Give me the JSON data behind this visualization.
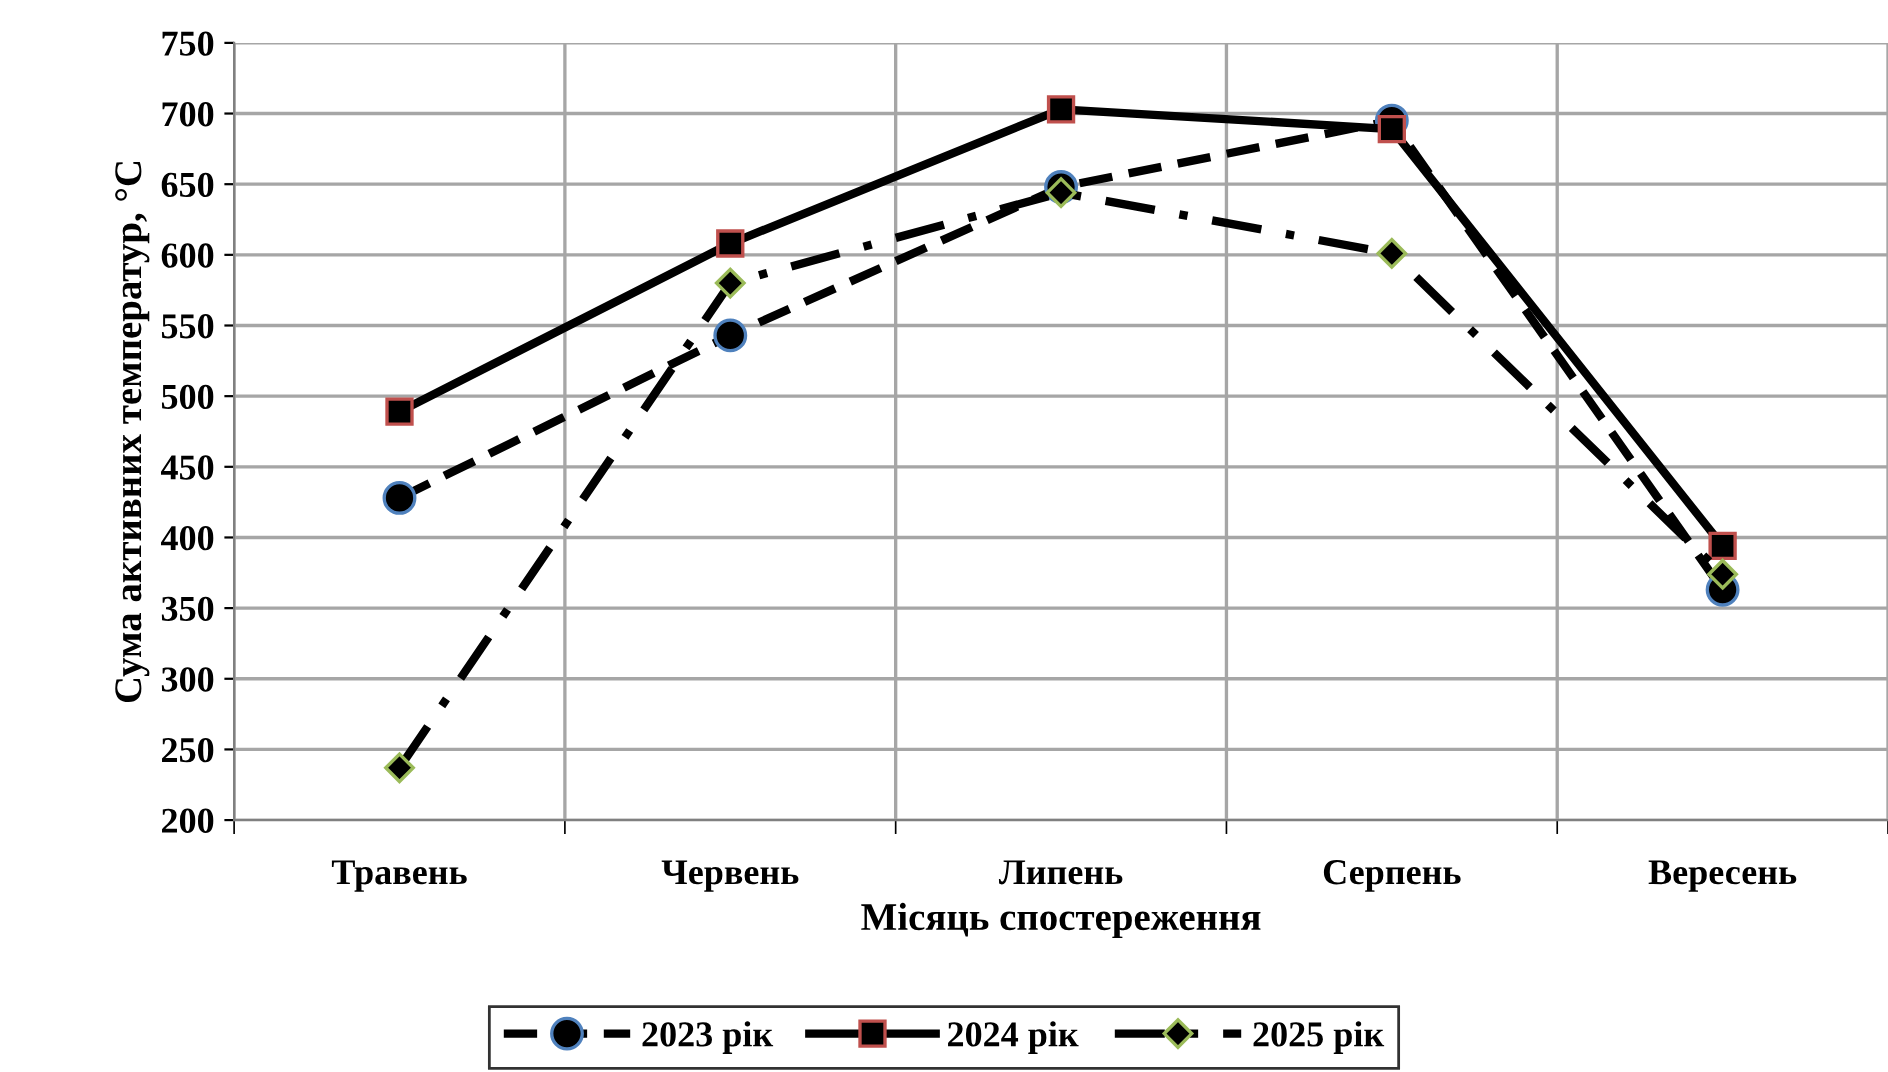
{
  "chart_data": {
    "type": "line",
    "xlabel": "Місяць спостереження",
    "ylabel": "Сума активних температур, °С",
    "categories": [
      "Травень",
      "Червень",
      "Липень",
      "Серпень",
      "Вересень"
    ],
    "series": [
      {
        "name": "2023 рік",
        "color": "#000000",
        "marker": "circle",
        "line_style": "dashed",
        "values": [
          428,
          543,
          648,
          695,
          363
        ]
      },
      {
        "name": "2024 рік",
        "color": "#000000",
        "marker": "square",
        "line_style": "solid",
        "values": [
          489,
          608,
          703,
          689,
          394
        ]
      },
      {
        "name": "2025 рік",
        "color": "#000000",
        "marker": "diamond",
        "line_style": "dashdot",
        "values": [
          237,
          580,
          644,
          601,
          374
        ]
      }
    ],
    "ylim": [
      200,
      750
    ],
    "yticks": [
      200,
      250,
      300,
      350,
      400,
      450,
      500,
      550,
      600,
      650,
      700,
      750
    ],
    "grid": true,
    "legend": "bottom"
  }
}
